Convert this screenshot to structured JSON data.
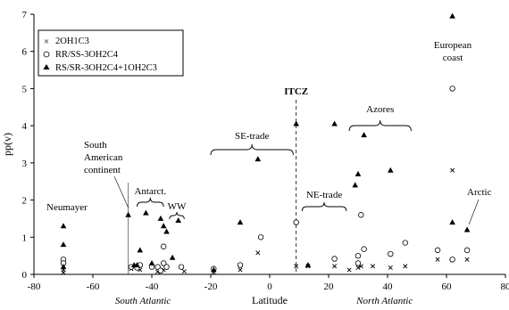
{
  "chart_data": {
    "type": "scatter",
    "xlabel": "Latitude",
    "ylabel": "pp(v)",
    "xlim": [
      -80,
      80
    ],
    "ylim": [
      0,
      7
    ],
    "xticks": [
      -80,
      -60,
      -40,
      -20,
      0,
      20,
      40,
      60,
      80
    ],
    "yticks": [
      0,
      1,
      2,
      3,
      4,
      5,
      6,
      7
    ],
    "grid": false,
    "legend_position": "top-left",
    "region_labels": [
      {
        "text": "South Atlantic",
        "x": -43
      },
      {
        "text": "North Atlantic",
        "x": 39
      }
    ],
    "series": [
      {
        "name": "2OH1C3",
        "marker": "x",
        "points": [
          [
            -70,
            0.12
          ],
          [
            -70,
            0.05
          ],
          [
            -47,
            0.15
          ],
          [
            -44,
            0.12
          ],
          [
            -38,
            0.07
          ],
          [
            -36,
            0.12
          ],
          [
            -29,
            0.08
          ],
          [
            -19,
            0.05
          ],
          [
            -10,
            0.12
          ],
          [
            -4,
            0.58
          ],
          [
            9,
            0.22
          ],
          [
            13,
            0.22
          ],
          [
            22,
            0.22
          ],
          [
            27,
            0.12
          ],
          [
            30,
            0.18
          ],
          [
            31,
            0.22
          ],
          [
            35,
            0.22
          ],
          [
            41,
            0.18
          ],
          [
            46,
            0.22
          ],
          [
            57,
            0.4
          ],
          [
            62,
            2.8
          ],
          [
            62,
            0.4
          ],
          [
            67,
            0.4
          ]
        ]
      },
      {
        "name": "RR/SS-3OH2C4",
        "marker": "circle",
        "points": [
          [
            -70,
            0.4
          ],
          [
            -70,
            0.3
          ],
          [
            -47,
            0.2
          ],
          [
            -45,
            0.18
          ],
          [
            -44,
            0.25
          ],
          [
            -40,
            0.2
          ],
          [
            -38,
            0.2
          ],
          [
            -37,
            0.1
          ],
          [
            -36,
            0.75
          ],
          [
            -36,
            0.3
          ],
          [
            -35,
            0.2
          ],
          [
            -30,
            0.2
          ],
          [
            -19,
            0.15
          ],
          [
            -10,
            0.25
          ],
          [
            -3,
            1.0
          ],
          [
            9,
            1.4
          ],
          [
            22,
            0.42
          ],
          [
            30,
            0.3
          ],
          [
            30,
            0.5
          ],
          [
            32,
            0.68
          ],
          [
            31,
            1.6
          ],
          [
            41,
            0.55
          ],
          [
            46,
            0.85
          ],
          [
            57,
            0.65
          ],
          [
            62,
            5.0
          ],
          [
            62,
            0.4
          ],
          [
            67,
            0.65
          ]
        ]
      },
      {
        "name": "RS/SR-3OH2C4+1OH2C3",
        "marker": "triangle",
        "points": [
          [
            -70,
            1.3
          ],
          [
            -70,
            0.8
          ],
          [
            -70,
            0.2
          ],
          [
            -48,
            1.6
          ],
          [
            -46,
            0.25
          ],
          [
            -45,
            0.25
          ],
          [
            -44,
            0.65
          ],
          [
            -42,
            1.65
          ],
          [
            -40,
            0.3
          ],
          [
            -37,
            1.5
          ],
          [
            -36,
            1.3
          ],
          [
            -35,
            1.15
          ],
          [
            -33,
            0.45
          ],
          [
            -31,
            1.45
          ],
          [
            -19,
            0.12
          ],
          [
            -10,
            1.4
          ],
          [
            -4,
            3.1
          ],
          [
            9,
            4.05
          ],
          [
            13,
            0.25
          ],
          [
            22,
            4.05
          ],
          [
            29,
            2.4
          ],
          [
            30,
            2.7
          ],
          [
            32,
            3.75
          ],
          [
            41,
            2.8
          ],
          [
            62,
            6.95
          ],
          [
            62,
            1.4
          ],
          [
            67,
            1.2
          ]
        ]
      }
    ],
    "annotations": {
      "itcz": {
        "text": "ITCZ",
        "x": 9
      },
      "south_american_continent": {
        "lines": [
          "South",
          "American",
          "continent"
        ],
        "x": -48
      },
      "neumayer": {
        "text": "Neumayer"
      },
      "antarct": {
        "text": "Antarct.",
        "x_range": [
          -45,
          -36
        ]
      },
      "ww": {
        "text": "WW",
        "x_range": [
          -34,
          -29
        ]
      },
      "se_trade": {
        "text": "SE-trade",
        "x_range": [
          -20,
          8
        ]
      },
      "ne_trade": {
        "text": "NE-trade",
        "x_range": [
          11,
          26
        ]
      },
      "azores": {
        "text": "Azores",
        "x_range": [
          27,
          48
        ]
      },
      "european_coast": {
        "lines": [
          "European",
          "coast"
        ]
      },
      "arctic": {
        "text": "Arctic",
        "x": 67
      }
    }
  }
}
